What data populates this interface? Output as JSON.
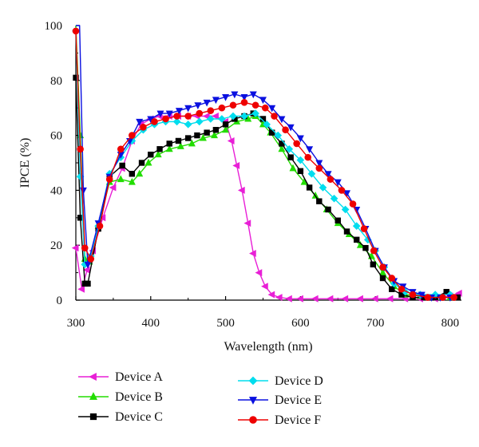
{
  "chart_data": {
    "type": "line",
    "xlabel": "Wavelength (nm)",
    "ylabel": "IPCE (%)",
    "xlim": [
      300,
      815
    ],
    "ylim": [
      0,
      100
    ],
    "xticks": [
      300,
      400,
      500,
      600,
      700,
      800
    ],
    "yticks": [
      0,
      20,
      40,
      60,
      80,
      100
    ],
    "grid": false,
    "legend_position": "bottom",
    "series": [
      {
        "name": "Device A",
        "color": "#e81fd6",
        "marker": "triangle-left",
        "points": [
          [
            300,
            19
          ],
          [
            308,
            4
          ],
          [
            315,
            11
          ],
          [
            323,
            18
          ],
          [
            336,
            30
          ],
          [
            350,
            41
          ],
          [
            362,
            48
          ],
          [
            375,
            58
          ],
          [
            387,
            64
          ],
          [
            400,
            66
          ],
          [
            412,
            67
          ],
          [
            425,
            67
          ],
          [
            437,
            67
          ],
          [
            450,
            67
          ],
          [
            462,
            67
          ],
          [
            475,
            67
          ],
          [
            487,
            67
          ],
          [
            500,
            65
          ],
          [
            508,
            58
          ],
          [
            515,
            49
          ],
          [
            522,
            40
          ],
          [
            530,
            28
          ],
          [
            537,
            17
          ],
          [
            545,
            10
          ],
          [
            553,
            5
          ],
          [
            562,
            2
          ],
          [
            572,
            1
          ],
          [
            585,
            0.5
          ],
          [
            600,
            0.5
          ],
          [
            620,
            0.5
          ],
          [
            640,
            0.5
          ],
          [
            660,
            0.5
          ],
          [
            680,
            0.5
          ],
          [
            700,
            0.5
          ],
          [
            720,
            0.5
          ],
          [
            740,
            0.5
          ],
          [
            760,
            0.5
          ],
          [
            780,
            0.5
          ],
          [
            800,
            1.5
          ],
          [
            812,
            2.5
          ]
        ]
      },
      {
        "name": "Device B",
        "color": "#22dd00",
        "marker": "triangle-up",
        "points": [
          [
            300,
            100
          ],
          [
            306,
            60
          ],
          [
            312,
            15
          ],
          [
            318,
            14
          ],
          [
            330,
            27
          ],
          [
            345,
            43
          ],
          [
            360,
            44
          ],
          [
            375,
            43
          ],
          [
            385,
            46
          ],
          [
            397,
            50
          ],
          [
            410,
            53
          ],
          [
            425,
            55
          ],
          [
            440,
            56
          ],
          [
            455,
            57
          ],
          [
            470,
            59
          ],
          [
            485,
            60
          ],
          [
            500,
            62
          ],
          [
            515,
            65
          ],
          [
            530,
            66
          ],
          [
            540,
            67
          ],
          [
            550,
            64
          ],
          [
            560,
            61
          ],
          [
            575,
            55
          ],
          [
            590,
            48
          ],
          [
            605,
            43
          ],
          [
            620,
            38
          ],
          [
            635,
            33
          ],
          [
            650,
            28
          ],
          [
            665,
            24
          ],
          [
            680,
            20
          ],
          [
            695,
            16
          ],
          [
            710,
            10
          ],
          [
            725,
            5
          ],
          [
            740,
            2
          ],
          [
            760,
            1.5
          ],
          [
            780,
            1
          ],
          [
            800,
            1
          ]
        ]
      },
      {
        "name": "Device C",
        "color": "#000000",
        "marker": "square",
        "points": [
          [
            300,
            81
          ],
          [
            306,
            30
          ],
          [
            312,
            6
          ],
          [
            316,
            6
          ],
          [
            330,
            26
          ],
          [
            345,
            45
          ],
          [
            362,
            49
          ],
          [
            375,
            46
          ],
          [
            388,
            50
          ],
          [
            400,
            53
          ],
          [
            412,
            55
          ],
          [
            425,
            57
          ],
          [
            437,
            58
          ],
          [
            450,
            59
          ],
          [
            462,
            60
          ],
          [
            475,
            61
          ],
          [
            487,
            62
          ],
          [
            500,
            64
          ],
          [
            512,
            66
          ],
          [
            525,
            67
          ],
          [
            537,
            68
          ],
          [
            550,
            66
          ],
          [
            562,
            61
          ],
          [
            575,
            57
          ],
          [
            587,
            52
          ],
          [
            600,
            47
          ],
          [
            612,
            41
          ],
          [
            625,
            36
          ],
          [
            637,
            33
          ],
          [
            650,
            29
          ],
          [
            662,
            25
          ],
          [
            675,
            22
          ],
          [
            687,
            19
          ],
          [
            697,
            13
          ],
          [
            710,
            8
          ],
          [
            722,
            4
          ],
          [
            735,
            2
          ],
          [
            750,
            1
          ],
          [
            765,
            1
          ],
          [
            780,
            1
          ],
          [
            795,
            3
          ],
          [
            810,
            1
          ]
        ]
      },
      {
        "name": "Device D",
        "color": "#00ddee",
        "marker": "diamond",
        "points": [
          [
            300,
            98
          ],
          [
            306,
            45
          ],
          [
            312,
            13
          ],
          [
            320,
            16
          ],
          [
            330,
            27
          ],
          [
            345,
            46
          ],
          [
            360,
            52
          ],
          [
            375,
            58
          ],
          [
            390,
            62
          ],
          [
            405,
            64
          ],
          [
            420,
            65
          ],
          [
            435,
            65
          ],
          [
            450,
            64
          ],
          [
            465,
            65
          ],
          [
            480,
            66
          ],
          [
            495,
            66
          ],
          [
            510,
            67
          ],
          [
            525,
            67
          ],
          [
            540,
            68
          ],
          [
            555,
            64
          ],
          [
            570,
            60
          ],
          [
            585,
            55
          ],
          [
            600,
            51
          ],
          [
            615,
            46
          ],
          [
            630,
            41
          ],
          [
            645,
            37
          ],
          [
            660,
            33
          ],
          [
            675,
            27
          ],
          [
            690,
            22
          ],
          [
            700,
            18
          ],
          [
            712,
            12
          ],
          [
            725,
            6
          ],
          [
            740,
            3
          ],
          [
            760,
            2
          ],
          [
            780,
            2
          ],
          [
            800,
            2
          ]
        ]
      },
      {
        "name": "Device E",
        "color": "#0a10e0",
        "marker": "triangle-down",
        "points": [
          [
            300,
            100
          ],
          [
            305,
            100
          ],
          [
            310,
            40
          ],
          [
            316,
            13
          ],
          [
            330,
            28
          ],
          [
            345,
            45
          ],
          [
            360,
            53
          ],
          [
            372,
            58
          ],
          [
            385,
            65
          ],
          [
            400,
            66
          ],
          [
            413,
            68
          ],
          [
            425,
            68
          ],
          [
            438,
            69
          ],
          [
            450,
            70
          ],
          [
            463,
            71
          ],
          [
            475,
            72
          ],
          [
            487,
            73
          ],
          [
            500,
            74
          ],
          [
            512,
            75
          ],
          [
            525,
            74
          ],
          [
            537,
            75
          ],
          [
            550,
            73
          ],
          [
            562,
            70
          ],
          [
            575,
            66
          ],
          [
            587,
            63
          ],
          [
            600,
            59
          ],
          [
            612,
            55
          ],
          [
            625,
            50
          ],
          [
            637,
            46
          ],
          [
            650,
            43
          ],
          [
            662,
            39
          ],
          [
            675,
            33
          ],
          [
            687,
            26
          ],
          [
            700,
            18
          ],
          [
            712,
            12
          ],
          [
            725,
            7
          ],
          [
            737,
            5
          ],
          [
            750,
            3
          ],
          [
            762,
            2
          ],
          [
            775,
            1
          ],
          [
            787,
            1
          ],
          [
            800,
            1
          ]
        ]
      },
      {
        "name": "Device F",
        "color": "#ee0000",
        "marker": "circle",
        "points": [
          [
            300,
            98
          ],
          [
            306,
            55
          ],
          [
            312,
            19
          ],
          [
            320,
            15
          ],
          [
            332,
            27
          ],
          [
            345,
            44
          ],
          [
            360,
            55
          ],
          [
            375,
            60
          ],
          [
            390,
            63
          ],
          [
            405,
            65
          ],
          [
            420,
            66
          ],
          [
            435,
            67
          ],
          [
            450,
            67
          ],
          [
            465,
            68
          ],
          [
            480,
            69
          ],
          [
            495,
            70
          ],
          [
            510,
            71
          ],
          [
            525,
            72
          ],
          [
            540,
            71
          ],
          [
            553,
            70
          ],
          [
            565,
            67
          ],
          [
            580,
            62
          ],
          [
            595,
            57
          ],
          [
            610,
            52
          ],
          [
            625,
            48
          ],
          [
            640,
            44
          ],
          [
            655,
            40
          ],
          [
            670,
            35
          ],
          [
            685,
            26
          ],
          [
            698,
            18
          ],
          [
            710,
            12
          ],
          [
            722,
            8
          ],
          [
            735,
            4
          ],
          [
            750,
            2
          ],
          [
            770,
            1
          ],
          [
            790,
            1
          ],
          [
            805,
            1
          ]
        ]
      }
    ]
  }
}
